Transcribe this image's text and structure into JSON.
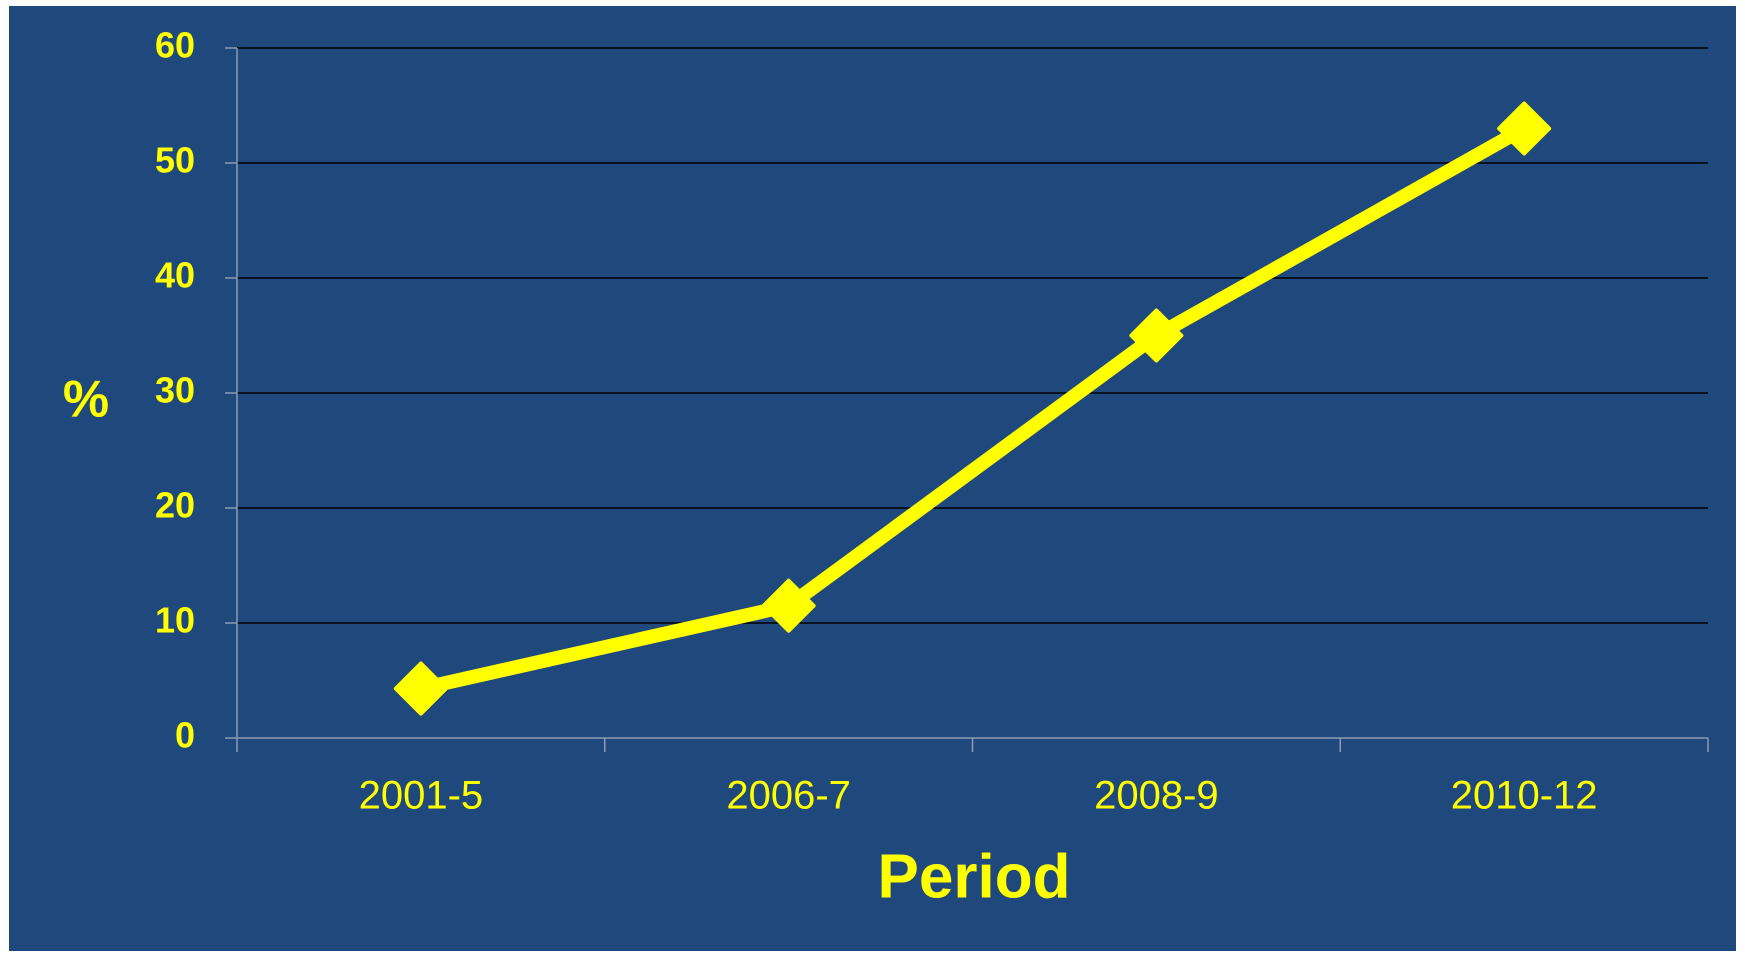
{
  "chart_data": {
    "type": "line",
    "categories": [
      "2001-5",
      "2006-7",
      "2008-9",
      "2010-12"
    ],
    "series": [
      {
        "name": "%",
        "color": "#ffff00",
        "values": [
          4.3,
          11.5,
          35,
          53
        ]
      }
    ],
    "ylabel": "%",
    "xlabel": "Period",
    "ylim": [
      0,
      60
    ],
    "yticks": [
      0,
      10,
      20,
      30,
      40,
      50,
      60
    ],
    "grid": true
  }
}
